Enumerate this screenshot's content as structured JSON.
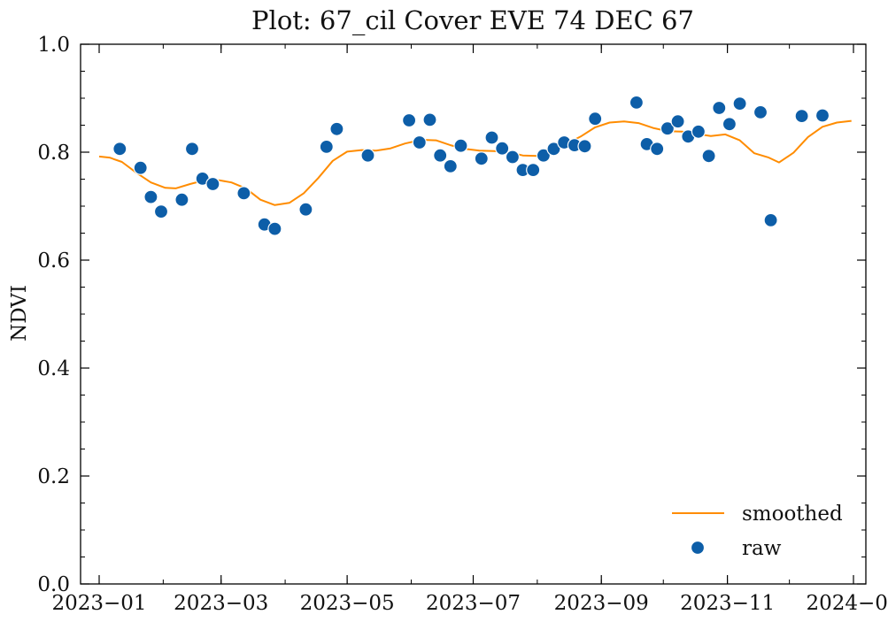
{
  "chart_data": {
    "type": "scatter",
    "title": "Plot: 67_cil Cover EVE 74 DEC 67",
    "xlabel": "",
    "ylabel": "NDVI",
    "ylim": [
      0.0,
      1.0
    ],
    "xlim": [
      "2022-12-23",
      "2024-01-07"
    ],
    "xticks": [
      "2023-01-01",
      "2023-03-01",
      "2023-05-01",
      "2023-07-01",
      "2023-09-01",
      "2023-11-01",
      "2024-01-01"
    ],
    "xtick_labels": [
      "2023−01",
      "2023−03",
      "2023−05",
      "2023−07",
      "2023−09",
      "2023−11",
      "2024−01"
    ],
    "yticks": [
      0.0,
      0.2,
      0.4,
      0.6,
      0.8,
      1.0
    ],
    "ytick_labels": [
      "0.0",
      "0.2",
      "0.4",
      "0.6",
      "0.8",
      "1.0"
    ],
    "legend_position": "lower right",
    "series": [
      {
        "name": "smoothed",
        "type": "line",
        "color": "#ff8c00",
        "points": [
          [
            "2023-01-01",
            0.792
          ],
          [
            "2023-01-06",
            0.79
          ],
          [
            "2023-01-12",
            0.782
          ],
          [
            "2023-01-19",
            0.762
          ],
          [
            "2023-01-26",
            0.744
          ],
          [
            "2023-02-02",
            0.734
          ],
          [
            "2023-02-07",
            0.733
          ],
          [
            "2023-02-14",
            0.741
          ],
          [
            "2023-02-21",
            0.748
          ],
          [
            "2023-02-28",
            0.748
          ],
          [
            "2023-03-06",
            0.744
          ],
          [
            "2023-03-13",
            0.733
          ],
          [
            "2023-03-20",
            0.712
          ],
          [
            "2023-03-27",
            0.702
          ],
          [
            "2023-04-03",
            0.706
          ],
          [
            "2023-04-10",
            0.724
          ],
          [
            "2023-04-17",
            0.752
          ],
          [
            "2023-04-24",
            0.784
          ],
          [
            "2023-05-01",
            0.801
          ],
          [
            "2023-05-08",
            0.804
          ],
          [
            "2023-05-15",
            0.803
          ],
          [
            "2023-05-22",
            0.807
          ],
          [
            "2023-05-29",
            0.816
          ],
          [
            "2023-06-06",
            0.823
          ],
          [
            "2023-06-13",
            0.822
          ],
          [
            "2023-06-20",
            0.813
          ],
          [
            "2023-06-27",
            0.806
          ],
          [
            "2023-07-04",
            0.803
          ],
          [
            "2023-07-11",
            0.802
          ],
          [
            "2023-07-18",
            0.8
          ],
          [
            "2023-07-25",
            0.794
          ],
          [
            "2023-08-01",
            0.793
          ],
          [
            "2023-08-08",
            0.802
          ],
          [
            "2023-08-15",
            0.815
          ],
          [
            "2023-08-22",
            0.829
          ],
          [
            "2023-08-29",
            0.846
          ],
          [
            "2023-09-05",
            0.855
          ],
          [
            "2023-09-12",
            0.857
          ],
          [
            "2023-09-19",
            0.854
          ],
          [
            "2023-09-26",
            0.845
          ],
          [
            "2023-10-03",
            0.839
          ],
          [
            "2023-10-10",
            0.838
          ],
          [
            "2023-10-17",
            0.834
          ],
          [
            "2023-10-24",
            0.83
          ],
          [
            "2023-10-31",
            0.833
          ],
          [
            "2023-11-07",
            0.822
          ],
          [
            "2023-11-14",
            0.798
          ],
          [
            "2023-11-21",
            0.79
          ],
          [
            "2023-11-26",
            0.781
          ],
          [
            "2023-12-03",
            0.799
          ],
          [
            "2023-12-10",
            0.828
          ],
          [
            "2023-12-17",
            0.847
          ],
          [
            "2023-12-24",
            0.855
          ],
          [
            "2023-12-31",
            0.858
          ]
        ]
      },
      {
        "name": "raw",
        "type": "scatter",
        "color": "#0d5ea8",
        "points": [
          [
            "2023-01-11",
            0.806
          ],
          [
            "2023-01-21",
            0.771
          ],
          [
            "2023-01-26",
            0.717
          ],
          [
            "2023-01-31",
            0.69
          ],
          [
            "2023-02-10",
            0.712
          ],
          [
            "2023-02-15",
            0.806
          ],
          [
            "2023-02-20",
            0.751
          ],
          [
            "2023-02-25",
            0.741
          ],
          [
            "2023-03-12",
            0.724
          ],
          [
            "2023-03-22",
            0.666
          ],
          [
            "2023-03-27",
            0.658
          ],
          [
            "2023-04-11",
            0.694
          ],
          [
            "2023-04-21",
            0.81
          ],
          [
            "2023-04-26",
            0.843
          ],
          [
            "2023-05-11",
            0.794
          ],
          [
            "2023-05-31",
            0.859
          ],
          [
            "2023-06-05",
            0.818
          ],
          [
            "2023-06-10",
            0.86
          ],
          [
            "2023-06-15",
            0.794
          ],
          [
            "2023-06-20",
            0.774
          ],
          [
            "2023-06-25",
            0.812
          ],
          [
            "2023-07-05",
            0.788
          ],
          [
            "2023-07-10",
            0.827
          ],
          [
            "2023-07-15",
            0.807
          ],
          [
            "2023-07-20",
            0.791
          ],
          [
            "2023-07-25",
            0.767
          ],
          [
            "2023-07-30",
            0.767
          ],
          [
            "2023-08-04",
            0.794
          ],
          [
            "2023-08-09",
            0.806
          ],
          [
            "2023-08-14",
            0.818
          ],
          [
            "2023-08-19",
            0.813
          ],
          [
            "2023-08-24",
            0.811
          ],
          [
            "2023-08-29",
            0.862
          ],
          [
            "2023-09-18",
            0.892
          ],
          [
            "2023-09-23",
            0.815
          ],
          [
            "2023-09-28",
            0.806
          ],
          [
            "2023-10-03",
            0.844
          ],
          [
            "2023-10-08",
            0.857
          ],
          [
            "2023-10-13",
            0.829
          ],
          [
            "2023-10-18",
            0.838
          ],
          [
            "2023-10-23",
            0.793
          ],
          [
            "2023-10-28",
            0.882
          ],
          [
            "2023-11-02",
            0.852
          ],
          [
            "2023-11-07",
            0.89
          ],
          [
            "2023-11-17",
            0.874
          ],
          [
            "2023-11-22",
            0.674
          ],
          [
            "2023-12-07",
            0.867
          ],
          [
            "2023-12-17",
            0.868
          ]
        ]
      }
    ]
  }
}
